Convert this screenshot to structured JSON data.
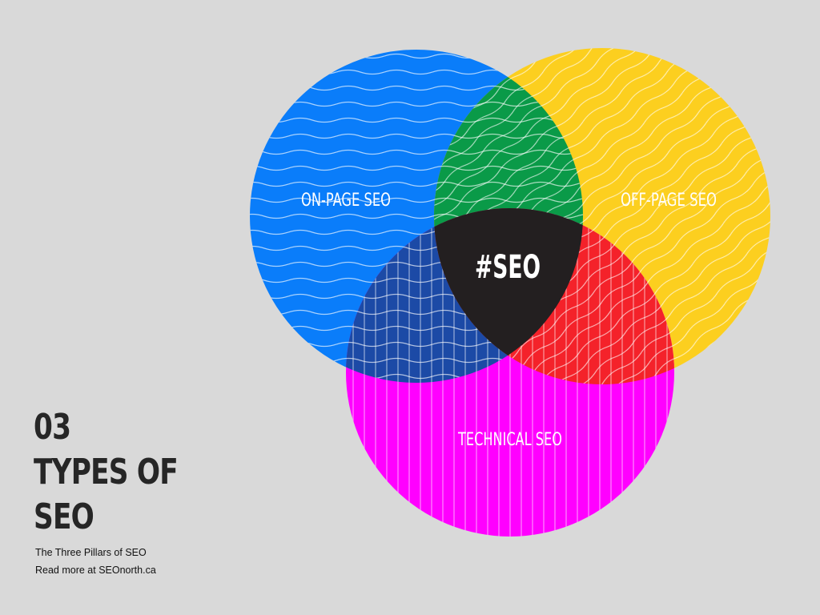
{
  "diagram": {
    "circles": [
      {
        "id": "on-page",
        "label": "ON-PAGE SEO",
        "color": "#0a7dfa",
        "pattern": "horizontal-waves"
      },
      {
        "id": "off-page",
        "label": "OFF-PAGE SEO",
        "color": "#fccf1f",
        "pattern": "diagonal-waves"
      },
      {
        "id": "technical",
        "label": "TECHNICAL SEO",
        "color": "#ff00ff",
        "pattern": "vertical-lines"
      }
    ],
    "overlaps": {
      "on_off": "#0a9a48",
      "on_tech": "#1c4aa6",
      "off_tech": "#f4222a"
    },
    "center": {
      "label": "#SEO",
      "color": "#231f20"
    }
  },
  "headline": {
    "line1": "03",
    "line2": "TYPES OF",
    "line3": "SEO"
  },
  "caption": {
    "subtitle": "The Three Pillars of SEO",
    "link_text": "Read more at SEOnorth.ca"
  }
}
